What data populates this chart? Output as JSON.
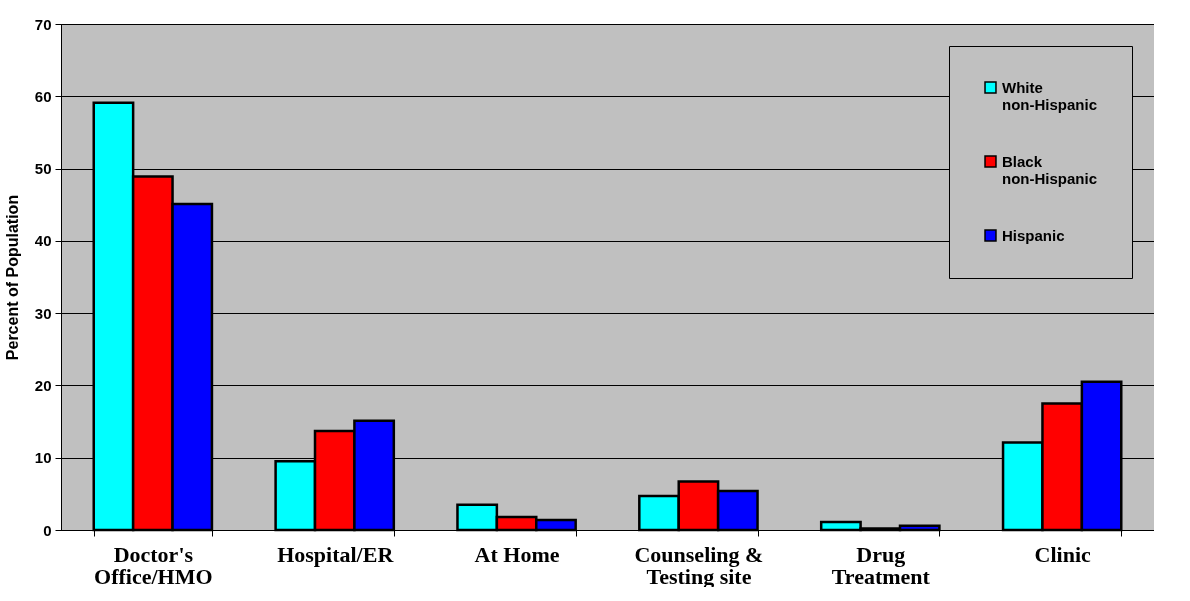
{
  "chart_data": {
    "type": "bar",
    "ylabel": "Percent of Population",
    "categories": [
      "Doctor's Office/HMO",
      "Hospital/ER",
      "At Home",
      "Counseling & Testing site",
      "Drug Treatment",
      "Clinic"
    ],
    "series": [
      {
        "name": "White non-Hispanic",
        "color": "#00ffff",
        "values": [
          59.1,
          9.5,
          3.5,
          4.7,
          1.1,
          12.1
        ]
      },
      {
        "name": "Black non-Hispanic",
        "color": "#ff0000",
        "values": [
          48.9,
          13.7,
          1.8,
          6.7,
          0.2,
          17.5
        ]
      },
      {
        "name": "Hispanic",
        "color": "#0000ff",
        "values": [
          45.1,
          15.1,
          1.4,
          5.4,
          0.6,
          20.5
        ]
      }
    ],
    "ylim": [
      0,
      70
    ],
    "yticks": [
      0,
      10,
      20,
      30,
      40,
      50,
      60,
      70
    ],
    "grid": "y",
    "legend": "top right"
  }
}
